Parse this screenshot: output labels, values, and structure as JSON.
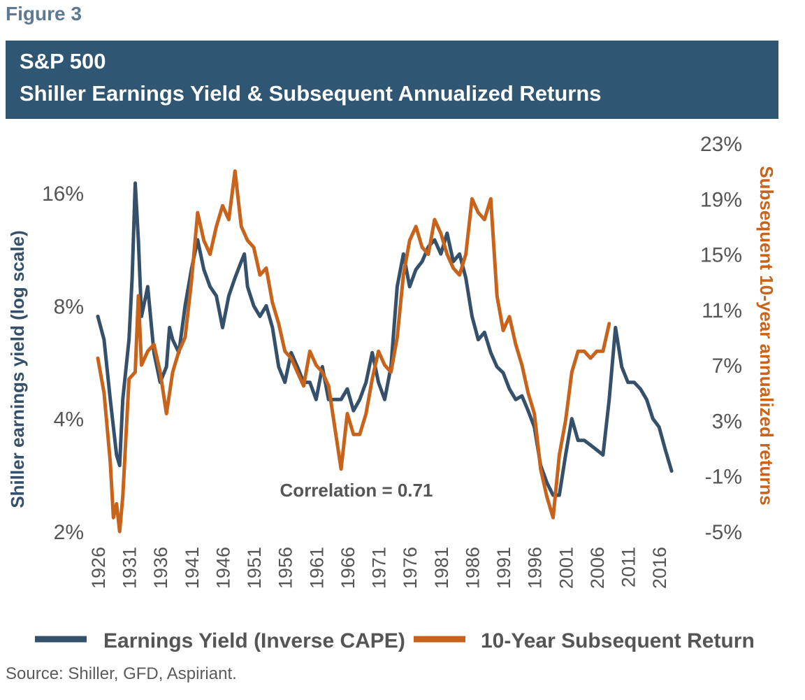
{
  "figure_label": "Figure 3",
  "title_line1": "S&P 500",
  "title_line2": "Shiller Earnings Yield & Subsequent Annualized Returns",
  "source": "Source: Shiller, GFD, Aspiriant.",
  "annotation": "Correlation = 0.71",
  "colors": {
    "banner": "#2f5673",
    "earnings_yield": "#34506b",
    "subsequent_return": "#c8631b",
    "figure_label": "#5d7a92"
  },
  "chart_data": {
    "type": "line",
    "left_axis": {
      "label": "Shiller earnings yield (log scale)",
      "scale": "log",
      "ylim": [
        2,
        20
      ],
      "ticks": [
        2,
        4,
        8,
        16
      ],
      "tick_labels": [
        "2%",
        "4%",
        "8%",
        "16%"
      ]
    },
    "right_axis": {
      "label": "Subsequent 10-year annualized returns",
      "ylim": [
        -5,
        23
      ],
      "ticks": [
        -5,
        -1,
        3,
        7,
        11,
        15,
        19,
        23
      ],
      "tick_labels": [
        "-5%",
        "-1%",
        "3%",
        "7%",
        "11%",
        "15%",
        "19%",
        "23%"
      ]
    },
    "xlim": [
      1926,
      2019
    ],
    "x_ticks": [
      1926,
      1931,
      1936,
      1941,
      1946,
      1951,
      1956,
      1961,
      1966,
      1971,
      1976,
      1981,
      1986,
      1991,
      1996,
      2001,
      2006,
      2011,
      2016
    ],
    "x_tick_labels": [
      "1926",
      "1931",
      "1936",
      "1941",
      "1946",
      "1951",
      "1956",
      "1961",
      "1966",
      "1971",
      "1976",
      "1981",
      "1986",
      "1991",
      "1996",
      "2001",
      "2006",
      "2011",
      "2016"
    ],
    "legend_position": "bottom",
    "series": [
      {
        "name": "Earnings Yield (Inverse CAPE)",
        "axis": "left",
        "x": [
          1926,
          1927,
          1928,
          1929,
          1929.5,
          1930,
          1931,
          1931.5,
          1932,
          1932.5,
          1933,
          1934,
          1935,
          1936,
          1937,
          1937.5,
          1938,
          1939,
          1940,
          1941,
          1942,
          1943,
          1944,
          1945,
          1946,
          1947,
          1948,
          1949,
          1949.5,
          1950,
          1951,
          1952,
          1953,
          1954,
          1955,
          1956,
          1957,
          1958,
          1959,
          1960,
          1961,
          1962,
          1963,
          1964,
          1965,
          1966,
          1967,
          1968,
          1969,
          1970,
          1971,
          1972,
          1973,
          1974,
          1975,
          1976,
          1977,
          1978,
          1979,
          1980,
          1981,
          1982,
          1983,
          1984,
          1985,
          1986,
          1987,
          1988,
          1989,
          1990,
          1991,
          1992,
          1993,
          1994,
          1995,
          1996,
          1997,
          1998,
          1999,
          2000,
          2001,
          2002,
          2003,
          2004,
          2005,
          2006,
          2007,
          2008,
          2009,
          2010,
          2011,
          2012,
          2013,
          2014,
          2015,
          2016,
          2017,
          2018
        ],
        "y": [
          7.5,
          6.5,
          4.5,
          3.2,
          3.0,
          4.5,
          6.5,
          9.5,
          17.0,
          12.0,
          7.5,
          9.0,
          6.0,
          5.0,
          5.5,
          7.0,
          6.5,
          6.0,
          8.0,
          10.0,
          12.0,
          10.0,
          9.0,
          8.5,
          7.0,
          8.5,
          9.5,
          10.5,
          11.0,
          9.0,
          8.0,
          7.5,
          8.0,
          7.0,
          5.5,
          5.0,
          6.0,
          5.5,
          5.0,
          5.0,
          4.5,
          5.5,
          4.5,
          4.5,
          4.5,
          4.8,
          4.2,
          4.5,
          5.0,
          6.0,
          5.0,
          4.5,
          5.5,
          9.0,
          11.0,
          9.0,
          10.0,
          10.5,
          11.5,
          12.0,
          11.0,
          12.5,
          10.5,
          11.0,
          9.5,
          7.5,
          6.5,
          6.8,
          6.0,
          5.5,
          5.3,
          4.8,
          4.5,
          4.6,
          4.2,
          3.8,
          3.0,
          2.7,
          2.5,
          2.5,
          3.2,
          4.0,
          3.5,
          3.5,
          3.4,
          3.3,
          3.2,
          4.5,
          7.0,
          5.5,
          5.0,
          5.0,
          4.8,
          4.5,
          4.0,
          3.8,
          3.3,
          2.9
        ]
      },
      {
        "name": "10-Year Subsequent Return",
        "axis": "right",
        "x": [
          1926,
          1927,
          1928,
          1928.5,
          1929,
          1929.5,
          1930,
          1931,
          1932,
          1932.5,
          1933,
          1934,
          1935,
          1936,
          1937,
          1938,
          1939,
          1940,
          1941,
          1942,
          1943,
          1944,
          1945,
          1946,
          1947,
          1948,
          1949,
          1950,
          1951,
          1952,
          1953,
          1954,
          1955,
          1956,
          1957,
          1958,
          1959,
          1960,
          1961,
          1962,
          1963,
          1964,
          1965,
          1966,
          1967,
          1968,
          1969,
          1970,
          1971,
          1972,
          1973,
          1974,
          1975,
          1976,
          1977,
          1978,
          1979,
          1980,
          1981,
          1982,
          1983,
          1984,
          1985,
          1986,
          1987,
          1988,
          1989,
          1990,
          1991,
          1992,
          1993,
          1994,
          1995,
          1996,
          1997,
          1998,
          1999,
          2000,
          2001,
          2002,
          2003,
          2004,
          2005,
          2006,
          2007,
          2008
        ],
        "y": [
          7.5,
          5.0,
          0.0,
          -4.0,
          -3.0,
          -5.0,
          -2.5,
          6.0,
          6.5,
          12.0,
          7.0,
          8.0,
          8.5,
          6.5,
          3.5,
          6.5,
          8.0,
          9.0,
          13.0,
          18.0,
          16.0,
          15.0,
          17.0,
          18.5,
          17.5,
          21.0,
          17.0,
          16.0,
          15.5,
          13.5,
          14.0,
          11.5,
          10.0,
          8.0,
          7.5,
          6.5,
          5.5,
          8.0,
          7.0,
          6.5,
          5.5,
          2.5,
          -0.5,
          3.5,
          2.0,
          2.0,
          3.5,
          6.0,
          8.0,
          7.0,
          6.5,
          9.0,
          13.5,
          16.0,
          17.0,
          15.5,
          15.0,
          17.5,
          16.5,
          15.0,
          14.0,
          13.5,
          15.0,
          19.0,
          18.0,
          17.5,
          19.0,
          12.0,
          9.5,
          10.5,
          8.5,
          7.0,
          5.0,
          3.5,
          -0.5,
          -2.5,
          -4.0,
          0.5,
          3.0,
          6.5,
          8.0,
          8.0,
          7.5,
          8.0,
          8.0,
          10.0
        ]
      }
    ]
  }
}
